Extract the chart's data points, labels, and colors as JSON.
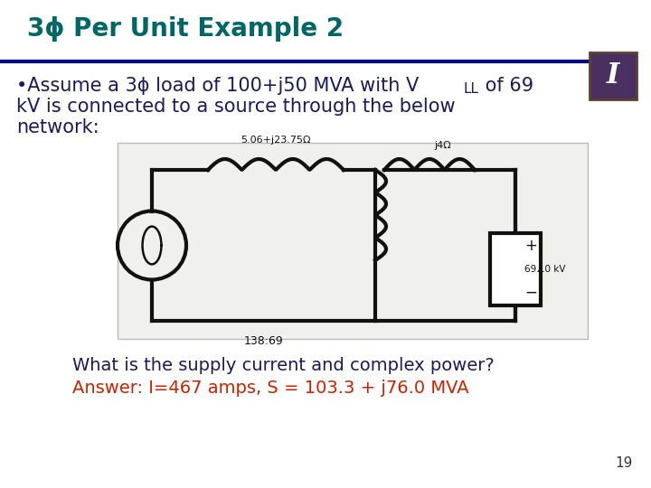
{
  "title": "3ϕ Per Unit Example 2",
  "title_color": "#006666",
  "title_fontsize": 20,
  "bg_color": "#ffffff",
  "separator_color": "#000080",
  "bullet_color": "#1a1a5e",
  "bullet_fontsize": 15,
  "question_text": "What is the supply current and complex power?",
  "question_color": "#1a1a5e",
  "question_fontsize": 14,
  "answer_text": "Answer: I=467 amps, S = 103.3 + j76.0 MVA",
  "answer_color": "#cc2200",
  "answer_fontsize": 14,
  "page_number": "19",
  "page_color": "#333333",
  "page_fontsize": 11,
  "circuit_bg": "#f0f0ee",
  "circuit_line_color": "#111111"
}
